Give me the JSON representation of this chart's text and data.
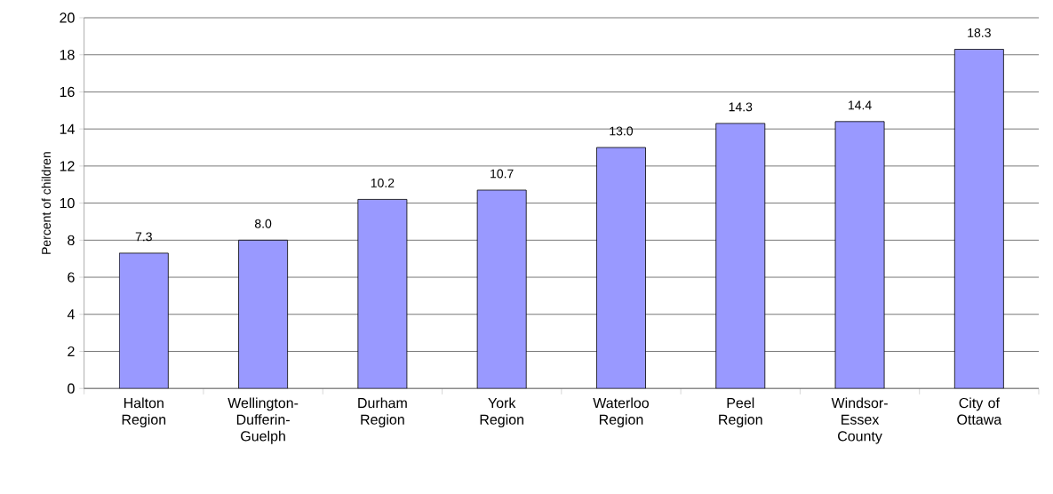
{
  "chart_data": {
    "type": "bar",
    "ylabel": "Percent of children",
    "categories": [
      "Halton Region",
      "Wellington-Dufferin-Guelph",
      "Durham Region",
      "York Region",
      "Waterloo Region",
      "Peel Region",
      "Windsor-Essex County",
      "City of Ottawa"
    ],
    "values": [
      7.3,
      8.0,
      10.2,
      10.7,
      13.0,
      14.3,
      14.4,
      18.3
    ],
    "value_labels": [
      "7.3",
      "8.0",
      "10.2",
      "10.7",
      "13.0",
      "14.3",
      "14.4",
      "18.3"
    ],
    "color": "#9999ff",
    "ylim": [
      0,
      20
    ],
    "yticks": [
      0,
      2,
      4,
      6,
      8,
      10,
      12,
      14,
      16,
      18,
      20
    ],
    "grid": "y"
  }
}
